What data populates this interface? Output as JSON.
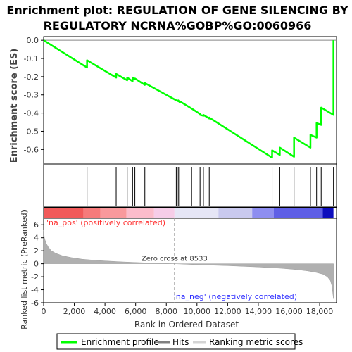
{
  "title_lines": [
    "Enrichment plot: REGULATION OF GENE SILENCING BY",
    "REGULATORY NCRNA%GOBP%GO:0060966"
  ],
  "legend": {
    "enrichment": "Enrichment profile",
    "hits": "Hits",
    "ranking": "Ranking metric scores"
  },
  "chart_data": [
    {
      "type": "line",
      "panel": "enrichment",
      "ylabel": "Enrichment score (ES)",
      "ylim": [
        -0.68,
        0.02
      ],
      "yticks": [
        0.0,
        -0.1,
        -0.2,
        -0.3,
        -0.4,
        -0.5,
        -0.6
      ],
      "ytick_labels": [
        "0.0",
        "-0.1",
        "-0.2",
        "-0.3",
        "-0.4",
        "-0.5",
        "-0.6"
      ],
      "xlim": [
        0,
        19100
      ],
      "grid": false,
      "series": [
        {
          "color": "#00ff00",
          "x": [
            0,
            2830,
            2830,
            4730,
            4730,
            5450,
            5450,
            5800,
            5800,
            5950,
            5950,
            6600,
            6600,
            8650,
            8650,
            8780,
            8780,
            8870,
            8870,
            9650,
            9650,
            10200,
            10200,
            10420,
            10420,
            10800,
            10800,
            14900,
            14900,
            15400,
            15400,
            16330,
            16330,
            17400,
            17400,
            17800,
            17800,
            18100,
            18100,
            18900,
            18900
          ],
          "y": [
            0.0,
            -0.15,
            -0.11,
            -0.205,
            -0.185,
            -0.22,
            -0.205,
            -0.225,
            -0.205,
            -0.215,
            -0.21,
            -0.245,
            -0.235,
            -0.33,
            -0.33,
            -0.335,
            -0.33,
            -0.34,
            -0.335,
            -0.375,
            -0.375,
            -0.405,
            -0.41,
            -0.415,
            -0.41,
            -0.43,
            -0.425,
            -0.645,
            -0.605,
            -0.63,
            -0.59,
            -0.64,
            -0.535,
            -0.59,
            -0.52,
            -0.535,
            -0.455,
            -0.465,
            -0.37,
            -0.41,
            0.0
          ]
        }
      ]
    },
    {
      "type": "scatter",
      "panel": "hits",
      "hit_ranks": [
        2830,
        4730,
        5450,
        5800,
        5950,
        6600,
        8650,
        8780,
        8870,
        9650,
        10200,
        10420,
        10800,
        14900,
        15400,
        16330,
        17400,
        17800,
        18100,
        18900
      ],
      "xlim": [
        0,
        19100
      ]
    },
    {
      "type": "heatmap",
      "panel": "colorbar",
      "xlim": [
        0,
        19100
      ],
      "segments": [
        {
          "start": 0,
          "end": 2600,
          "color": "#f15a5a"
        },
        {
          "start": 2600,
          "end": 3700,
          "color": "#f67b7b"
        },
        {
          "start": 3700,
          "end": 5400,
          "color": "#f9999c"
        },
        {
          "start": 5400,
          "end": 7200,
          "color": "#fbbccb"
        },
        {
          "start": 7200,
          "end": 8533,
          "color": "#f6cde8"
        },
        {
          "start": 8533,
          "end": 11400,
          "color": "#e6e6f6"
        },
        {
          "start": 11400,
          "end": 13600,
          "color": "#c9c9ee"
        },
        {
          "start": 13600,
          "end": 15000,
          "color": "#8e8ef0"
        },
        {
          "start": 15000,
          "end": 18200,
          "color": "#5f5fe6"
        },
        {
          "start": 18200,
          "end": 18900,
          "color": "#0d0dbd"
        }
      ]
    },
    {
      "type": "area",
      "panel": "ranking",
      "xlabel": "Rank in Ordered Dataset",
      "ylabel": "Ranked list metric (PreRanked)",
      "ylim": [
        -6,
        7
      ],
      "xlim": [
        0,
        19100
      ],
      "yticks": [
        6,
        4,
        2,
        0,
        -2,
        -4,
        -6
      ],
      "ytick_labels": [
        "6",
        "4",
        "2",
        "0",
        "-2",
        "-4",
        "-6"
      ],
      "xticks": [
        0,
        2000,
        4000,
        6000,
        8000,
        10000,
        12000,
        14000,
        16000,
        18000
      ],
      "xtick_labels": [
        "0",
        "2,000",
        "4,000",
        "6,000",
        "8,000",
        "10,000",
        "12,000",
        "14,000",
        "16,000",
        "18,000"
      ],
      "x": [
        0,
        50,
        150,
        300,
        500,
        800,
        1200,
        1800,
        2500,
        3500,
        5000,
        6500,
        8533,
        10000,
        12000,
        14000,
        15500,
        16500,
        17200,
        17800,
        18200,
        18500,
        18700,
        18800,
        18900
      ],
      "values": [
        5.2,
        4.0,
        3.2,
        2.6,
        2.0,
        1.6,
        1.25,
        0.95,
        0.7,
        0.5,
        0.3,
        0.15,
        0.0,
        -0.15,
        -0.3,
        -0.5,
        -0.7,
        -0.9,
        -1.1,
        -1.35,
        -1.6,
        -2.0,
        -2.6,
        -3.4,
        -5.4
      ],
      "color": "#b0b0b0",
      "zero_cross_label": "Zero cross at 8533",
      "zero_cross": 8533,
      "pos_label": "'na_pos' (positively correlated)",
      "neg_label": "'na_neg' (negatively correlated)",
      "pos_color": "#ff3030",
      "neg_color": "#3030ff"
    }
  ]
}
